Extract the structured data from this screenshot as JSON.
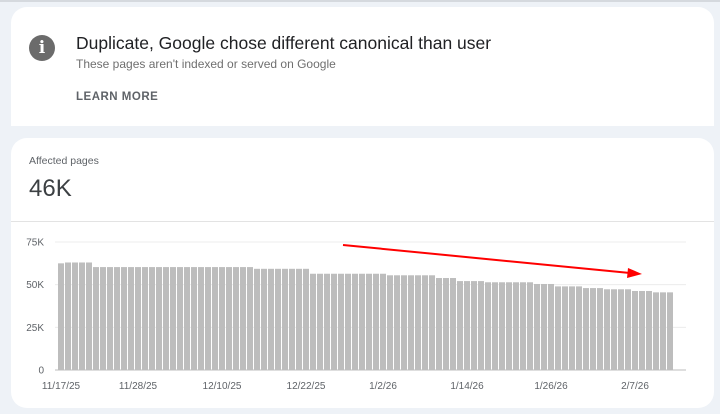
{
  "issue": {
    "icon": "info-icon",
    "title": "Duplicate, Google chose different canonical than user",
    "subtitle": "These pages aren't indexed or served on Google",
    "learn_more": "LEARN MORE"
  },
  "summary": {
    "label": "Affected pages",
    "value": "46K"
  },
  "chart_data": {
    "type": "bar",
    "title": "",
    "xlabel": "",
    "ylabel": "",
    "ylim": [
      0,
      75000
    ],
    "y_ticks": [
      {
        "value": 0,
        "label": "0"
      },
      {
        "value": 25000,
        "label": "25K"
      },
      {
        "value": 50000,
        "label": "50K"
      },
      {
        "value": 75000,
        "label": "75K"
      }
    ],
    "x_ticks": [
      {
        "index": 0,
        "label": "11/17/25"
      },
      {
        "index": 11,
        "label": "11/28/25"
      },
      {
        "index": 23,
        "label": "12/10/25"
      },
      {
        "index": 35,
        "label": "12/22/25"
      },
      {
        "index": 46,
        "label": "1/2/26"
      },
      {
        "index": 58,
        "label": "1/14/26"
      },
      {
        "index": 70,
        "label": "1/26/26"
      },
      {
        "index": 82,
        "label": "2/7/26"
      }
    ],
    "grid": true,
    "bar_color": "#bdbdbd",
    "annotation": {
      "type": "arrow",
      "color": "#ff0000",
      "meaning": "downward trend"
    },
    "values": [
      62500,
      63000,
      63000,
      63000,
      63000,
      60300,
      60300,
      60300,
      60300,
      60300,
      60300,
      60300,
      60300,
      60300,
      60300,
      60300,
      60300,
      60300,
      60300,
      60300,
      60300,
      60300,
      60300,
      60300,
      60300,
      60300,
      60300,
      60300,
      59300,
      59300,
      59300,
      59300,
      59300,
      59300,
      59300,
      59300,
      56400,
      56400,
      56400,
      56400,
      56400,
      56400,
      56400,
      56400,
      56400,
      56400,
      56400,
      55500,
      55500,
      55500,
      55500,
      55500,
      55500,
      55500,
      53900,
      53900,
      53900,
      52100,
      52100,
      52100,
      52100,
      51400,
      51400,
      51400,
      51400,
      51400,
      51400,
      51400,
      50400,
      50400,
      50400,
      49000,
      49000,
      49000,
      49000,
      48000,
      48000,
      48000,
      47300,
      47300,
      47300,
      47300,
      46300,
      46300,
      46300,
      45500,
      45500,
      45500
    ]
  }
}
